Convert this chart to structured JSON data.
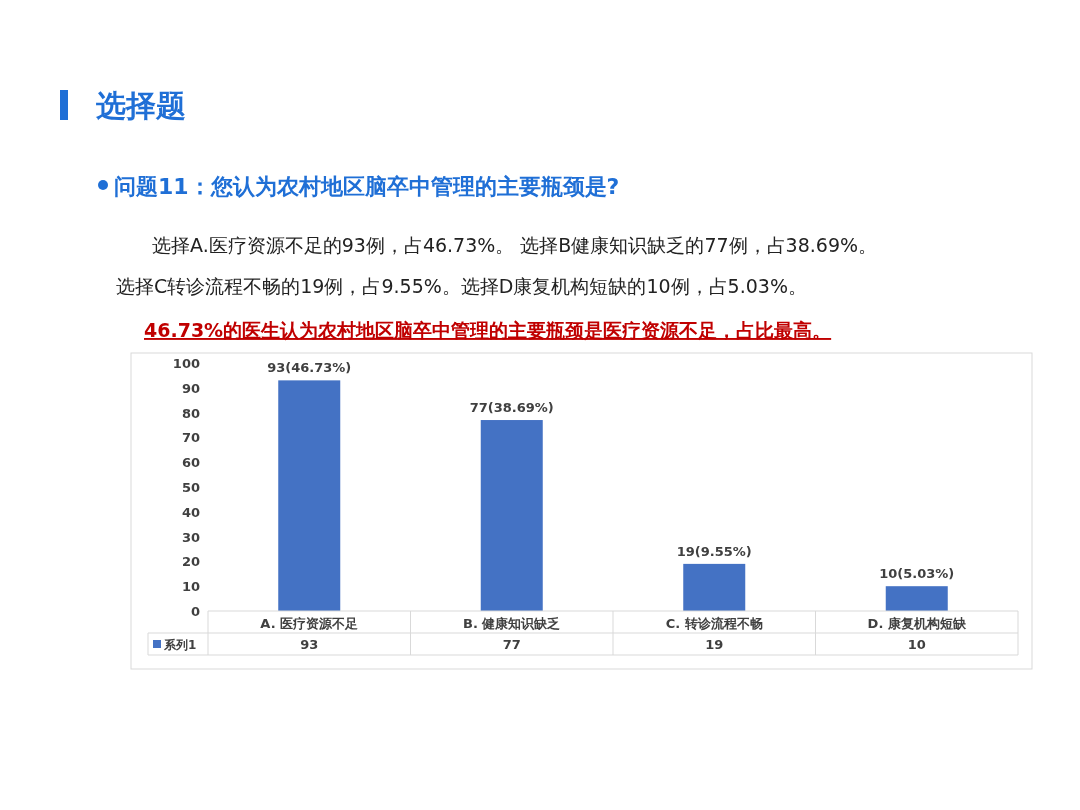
{
  "chart_data": {
    "type": "bar",
    "title": "选择题",
    "subtitle": "问题11：您认为农村地区脑卒中管理的主要瓶颈是?",
    "annotations": [
      "选择A.医疗资源不足的93例，占46.73%。 选择B健康知识缺乏的77例，占38.69%。",
      "选择C转诊流程不畅的19例，占9.55%。选择D康复机构短缺的10例，占5.03%。",
      "46.73%的医生认为农村地区脑卒中管理的主要瓶颈是医疗资源不足，占比最高。",
      {
        "text": "93(46.73%)",
        "x": "A. 医疗资源不足",
        "y": 93
      },
      {
        "text": "77(38.69%)",
        "x": "B. 健康知识缺乏",
        "y": 77
      },
      {
        "text": "19(9.55%)",
        "x": "C. 转诊流程不畅",
        "y": 19
      },
      {
        "text": "10(5.03%)",
        "x": "D. 康复机构短缺",
        "y": 10
      }
    ],
    "categories": [
      "A. 医疗资源不足",
      "B. 健康知识缺乏",
      "C. 转诊流程不畅",
      "D. 康复机构短缺"
    ],
    "series": [
      {
        "name": "系列1",
        "color": "#4472c4",
        "values": [
          93,
          77,
          19,
          10
        ],
        "value_labels": [
          "93",
          "77",
          "19",
          "10"
        ]
      }
    ],
    "ylim": [
      0,
      100
    ],
    "yticks": [
      0,
      10,
      20,
      30,
      40,
      50,
      60,
      70,
      80,
      90,
      100
    ],
    "grid": false,
    "legend": "bottom"
  }
}
